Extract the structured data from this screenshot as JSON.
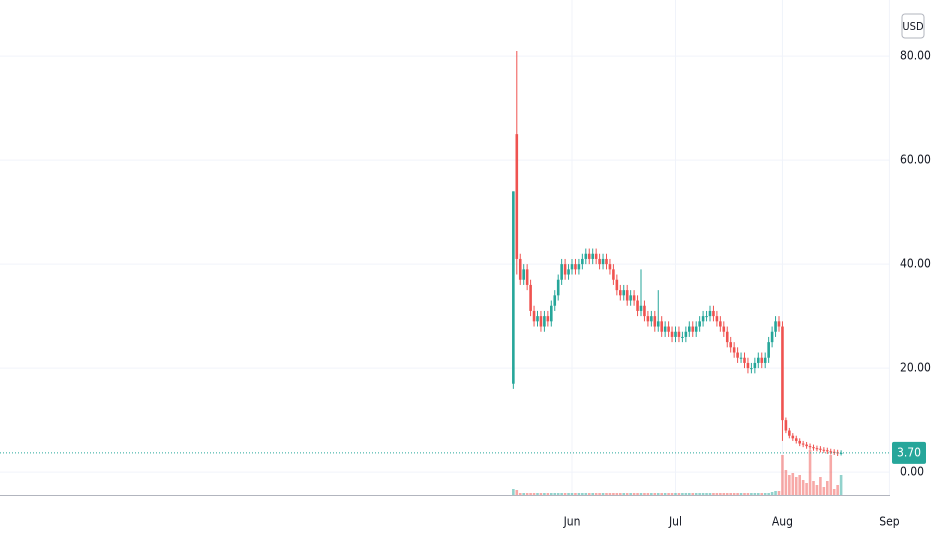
{
  "chart_data": {
    "type": "candlestick",
    "currency": "USD",
    "up_color": "#26a69a",
    "down_color": "#ef5350",
    "grid": true,
    "ylim": [
      -4.4,
      90.8
    ],
    "yticks": [
      {
        "value": 0,
        "label": "0.00"
      },
      {
        "value": 20,
        "label": "20.00"
      },
      {
        "value": 40,
        "label": "40.00"
      },
      {
        "value": 60,
        "label": "60.00"
      },
      {
        "value": 80,
        "label": "80.00"
      }
    ],
    "last_price": {
      "value": 3.7,
      "label": "3.70"
    },
    "categories": [
      null,
      null,
      null,
      null,
      null,
      null,
      null,
      null,
      null,
      null,
      null,
      null,
      null,
      null,
      null,
      null,
      null,
      "Jun",
      null,
      null,
      null,
      null,
      null,
      null,
      null,
      null,
      null,
      null,
      null,
      null,
      null,
      null,
      null,
      null,
      null,
      null,
      null,
      null,
      null,
      null,
      null,
      null,
      null,
      null,
      null,
      null,
      null,
      "Jul",
      null,
      null,
      null,
      null,
      null,
      null,
      null,
      null,
      null,
      null,
      null,
      null,
      null,
      null,
      null,
      null,
      null,
      null,
      null,
      null,
      null,
      null,
      null,
      null,
      null,
      null,
      null,
      null,
      null,
      null,
      "Aug",
      null,
      null,
      null,
      null,
      null,
      null,
      null,
      null,
      null,
      null,
      null,
      null,
      null,
      null,
      null,
      null,
      null,
      null,
      null,
      null,
      null,
      null,
      null,
      null,
      null,
      null,
      null,
      null,
      null,
      null,
      "Sep"
    ],
    "open": [
      17,
      65,
      41,
      37,
      39,
      36,
      31,
      29,
      30,
      28,
      30,
      29,
      32,
      34,
      37,
      40,
      38,
      39,
      40,
      39,
      40,
      41,
      42,
      41,
      42,
      41,
      40,
      41,
      40,
      39,
      37,
      35,
      34,
      35,
      33,
      34,
      33,
      31,
      32,
      30,
      29,
      30,
      28,
      29,
      27,
      28,
      27,
      26,
      27,
      26,
      26,
      27,
      28,
      27,
      28,
      29,
      30,
      30,
      31,
      30,
      29,
      28,
      27,
      25,
      24,
      23,
      22,
      22,
      21,
      20,
      20,
      21,
      22,
      21,
      22,
      25,
      27,
      29,
      28,
      10,
      8,
      7,
      6.5,
      6,
      5.5,
      5.3,
      5,
      4.8,
      4.6,
      4.5,
      4.3,
      4.2,
      4,
      3.9,
      3.8,
      3.6,
      null,
      null,
      null,
      null,
      null,
      null,
      null,
      null,
      null,
      null,
      null,
      null,
      null,
      null
    ],
    "high": [
      54,
      81,
      42,
      40,
      40,
      37,
      32,
      31,
      31,
      31,
      31,
      33,
      35,
      38,
      41,
      41,
      40,
      41,
      41,
      41,
      42,
      43,
      43,
      43,
      43,
      42,
      42,
      42,
      41,
      40,
      38,
      36,
      36,
      36,
      35,
      35,
      34,
      39,
      33,
      31,
      31,
      31,
      35,
      30,
      29,
      29,
      28,
      28,
      28,
      27,
      28,
      29,
      29,
      29,
      30,
      31,
      31,
      32,
      32,
      31,
      30,
      29,
      28,
      26,
      25,
      24,
      23,
      23,
      22,
      21,
      22,
      23,
      23,
      23,
      26,
      28,
      30,
      30,
      29,
      10.5,
      8.5,
      7.5,
      7,
      6.5,
      6,
      5.8,
      5.5,
      5.3,
      5.1,
      5,
      4.8,
      4.7,
      4.5,
      4.4,
      4.3,
      4.2,
      null,
      null,
      null,
      null,
      null,
      null,
      null,
      null,
      null,
      null,
      null,
      null,
      null,
      null
    ],
    "low": [
      16,
      38,
      36,
      36,
      35,
      30,
      28,
      28,
      27,
      27,
      28,
      28,
      31,
      33,
      36,
      37,
      37,
      38,
      38,
      38,
      39,
      40,
      40,
      40,
      40,
      39,
      39,
      39,
      38,
      36,
      34,
      33,
      33,
      32,
      32,
      32,
      30,
      30,
      29,
      28,
      28,
      27,
      27,
      26,
      26,
      26,
      25,
      25,
      25,
      25,
      25,
      26,
      26,
      26,
      27,
      28,
      29,
      29,
      29,
      28,
      27,
      26,
      24,
      23,
      22,
      21,
      21,
      20,
      19,
      19,
      19,
      20,
      20,
      20,
      21,
      24,
      26,
      27,
      6,
      7.5,
      6.5,
      6,
      5.5,
      5,
      4.8,
      4.5,
      4.3,
      4.1,
      4,
      3.8,
      3.7,
      3.5,
      3.4,
      3.3,
      3.1,
      3.2,
      null,
      null,
      null,
      null,
      null,
      null,
      null,
      null,
      null,
      null,
      null,
      null,
      null,
      null
    ],
    "close": [
      54,
      41,
      37,
      39,
      36,
      31,
      29,
      30,
      28,
      30,
      29,
      32,
      34,
      37,
      40,
      38,
      39,
      40,
      39,
      40,
      41,
      42,
      41,
      42,
      41,
      40,
      41,
      40,
      39,
      37,
      35,
      34,
      35,
      33,
      34,
      33,
      31,
      32,
      30,
      29,
      30,
      28,
      29,
      27,
      28,
      27,
      26,
      27,
      26,
      26,
      27,
      28,
      27,
      28,
      29,
      30,
      30,
      31,
      30,
      29,
      28,
      27,
      25,
      24,
      23,
      22,
      22,
      21,
      20,
      20,
      21,
      22,
      21,
      22,
      25,
      27,
      29,
      28,
      10,
      8,
      7,
      6.5,
      6,
      5.5,
      5.3,
      5,
      4.8,
      4.6,
      4.5,
      4.3,
      4.2,
      4,
      3.9,
      3.8,
      3.6,
      3.7,
      null,
      null,
      null,
      null,
      null,
      null,
      null,
      null,
      null,
      null,
      null,
      null,
      null,
      null
    ],
    "volume": [
      6,
      5,
      2,
      2,
      2,
      2,
      2,
      2,
      2,
      2,
      2,
      2,
      2,
      2,
      2,
      2,
      2,
      2,
      2,
      2,
      2,
      2,
      2,
      2,
      2,
      2,
      2,
      2,
      2,
      2,
      2,
      2,
      2,
      2,
      2,
      2,
      2,
      2,
      2,
      2,
      2,
      2,
      2,
      2,
      2,
      2,
      2,
      2,
      2,
      2,
      2,
      2,
      2,
      2,
      2,
      2,
      2,
      2,
      2,
      2,
      2,
      2,
      2,
      2,
      2,
      2,
      2,
      2,
      2,
      2,
      2,
      2,
      2,
      2,
      2,
      3,
      4,
      4,
      40,
      25,
      20,
      22,
      18,
      20,
      15,
      12,
      45,
      14,
      10,
      18,
      8,
      14,
      40,
      6,
      10,
      20,
      null,
      null,
      null,
      null,
      null,
      null,
      null,
      null,
      null,
      null,
      null,
      null,
      null,
      null
    ]
  }
}
